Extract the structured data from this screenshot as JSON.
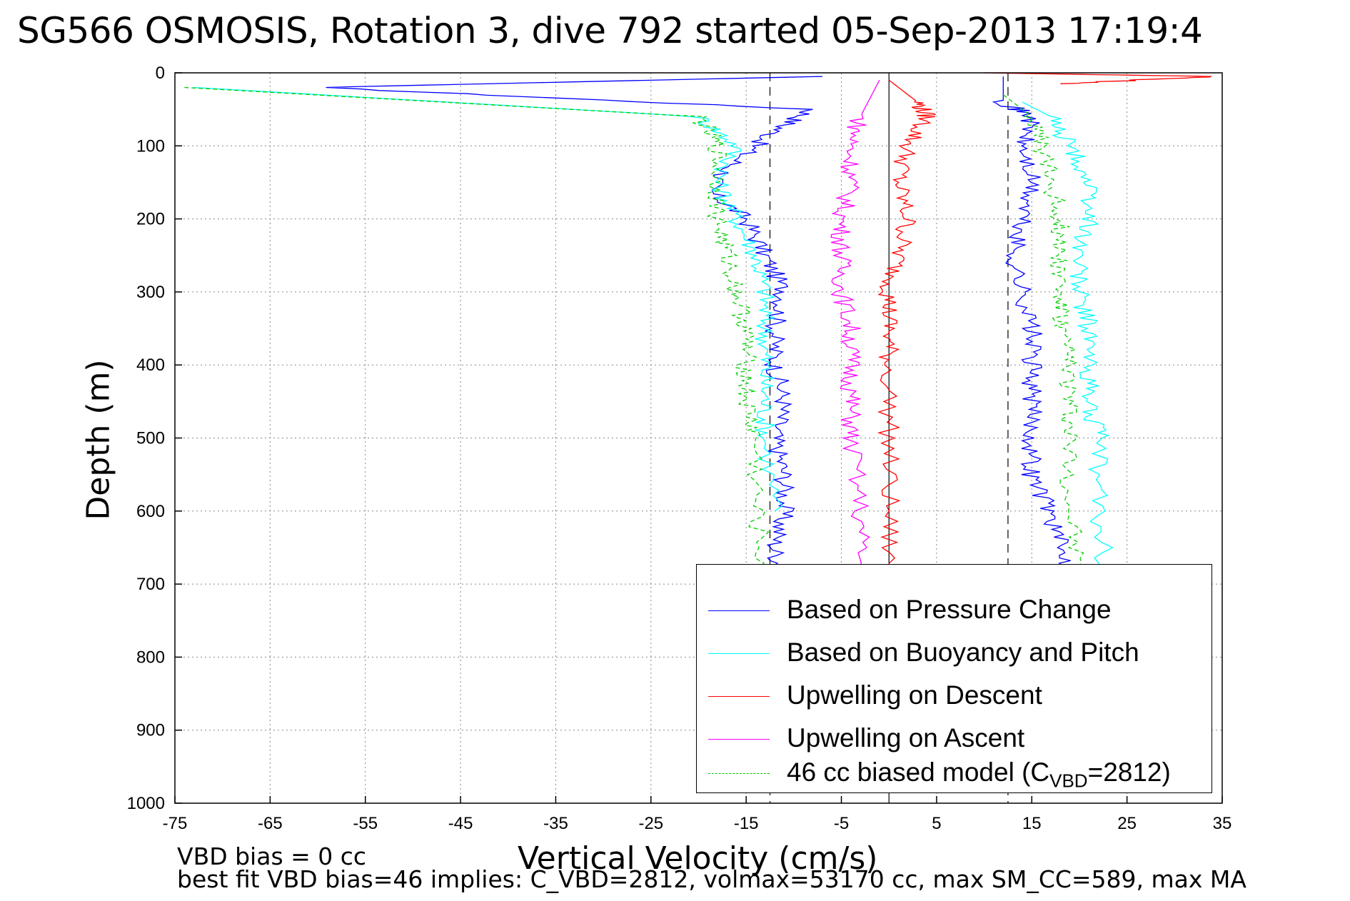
{
  "title": "SG566 OSMOSIS, Rotation 3, dive 792 started 05-Sep-2013 17:19:4",
  "note_line1": "VBD bias = 0 cc",
  "note_line2": "best fit VBD bias=46 implies: C_VBD=2812, volmax=53170 cc, max SM_CC=589, max MA",
  "legend_last": {
    "pre": "46 cc biased model (C",
    "sub": "VBD",
    "post": "=2812)"
  },
  "chart_data": {
    "type": "line",
    "xlabel": "Vertical Velocity (cm/s)",
    "ylabel": "Depth (m)",
    "xlim": [
      -75,
      35
    ],
    "ylim": [
      0,
      1000
    ],
    "y_reversed": true,
    "grid": true,
    "legend_position": "bottom-right",
    "x_ticks": [
      -75,
      -65,
      -55,
      -45,
      -35,
      -25,
      -15,
      -5,
      5,
      15,
      25,
      35
    ],
    "y_ticks": [
      0,
      100,
      200,
      300,
      400,
      500,
      600,
      700,
      800,
      900,
      1000
    ],
    "reference_lines": {
      "dashed_x": [
        -12.5,
        12.5
      ],
      "solid_x": [
        0
      ]
    },
    "series": [
      {
        "name": "Based on Pressure Change",
        "color": "#0000ff",
        "style": "solid",
        "x": [
          -7,
          -60,
          -8,
          -12,
          -16,
          -19,
          -15,
          -13,
          -11,
          -12,
          -12,
          -11,
          -12,
          -11,
          -11,
          -12,
          -11
        ],
        "y": [
          5,
          20,
          50,
          80,
          120,
          160,
          200,
          250,
          300,
          350,
          400,
          450,
          500,
          550,
          600,
          650,
          700
        ],
        "x2": [
          12,
          12,
          15,
          14,
          15,
          14,
          13,
          14,
          15,
          15,
          15,
          15,
          15,
          17,
          18,
          20
        ],
        "y2": [
          5,
          40,
          60,
          100,
          150,
          200,
          250,
          300,
          350,
          400,
          450,
          500,
          550,
          600,
          650,
          700
        ]
      },
      {
        "name": "Based on Buoyancy and Pitch",
        "color": "#00ffff",
        "style": "solid",
        "x": [
          -73,
          -20,
          -16,
          -18,
          -16,
          -14,
          -13,
          -13,
          -13,
          -13,
          -13,
          -12
        ],
        "y": [
          20,
          60,
          100,
          150,
          200,
          250,
          300,
          350,
          400,
          450,
          500,
          600
        ],
        "x2": [
          14,
          17,
          19,
          21,
          21,
          20,
          20,
          21,
          21,
          21,
          22,
          22,
          23
        ],
        "y2": [
          40,
          60,
          100,
          150,
          200,
          250,
          300,
          350,
          400,
          450,
          500,
          600,
          700
        ]
      },
      {
        "name": "Upwelling on Descent",
        "color": "#ff0000",
        "style": "solid",
        "x": [
          0,
          3,
          4,
          2,
          1,
          2,
          1,
          0,
          0,
          0,
          0,
          0,
          0
        ],
        "y": [
          10,
          40,
          60,
          100,
          150,
          200,
          250,
          300,
          350,
          400,
          500,
          600,
          700
        ],
        "surface_spike": {
          "x": [
            10,
            34,
            18
          ],
          "y": [
            0,
            5,
            15
          ]
        }
      },
      {
        "name": "Upwelling on Ascent",
        "color": "#ff00ff",
        "style": "solid",
        "x": [
          -1,
          -3,
          -4,
          -4,
          -5,
          -5,
          -5,
          -4,
          -4,
          -4,
          -4,
          -3,
          -3
        ],
        "y": [
          10,
          60,
          100,
          150,
          200,
          250,
          300,
          350,
          400,
          450,
          500,
          600,
          700
        ]
      },
      {
        "name": "",
        "color": "#00cc00",
        "style": "dashed",
        "x": [
          -74,
          -20,
          -18,
          -18,
          -18,
          -17,
          -16,
          -15,
          -15,
          -15,
          -14,
          -14,
          -13
        ],
        "y": [
          20,
          60,
          100,
          150,
          200,
          250,
          300,
          350,
          400,
          450,
          500,
          600,
          700
        ],
        "x2": [
          12,
          15,
          16,
          17,
          18,
          18,
          18,
          18,
          19,
          19,
          19,
          19,
          20
        ],
        "y2": [
          30,
          60,
          100,
          150,
          200,
          250,
          300,
          350,
          400,
          450,
          500,
          600,
          700
        ]
      }
    ]
  }
}
